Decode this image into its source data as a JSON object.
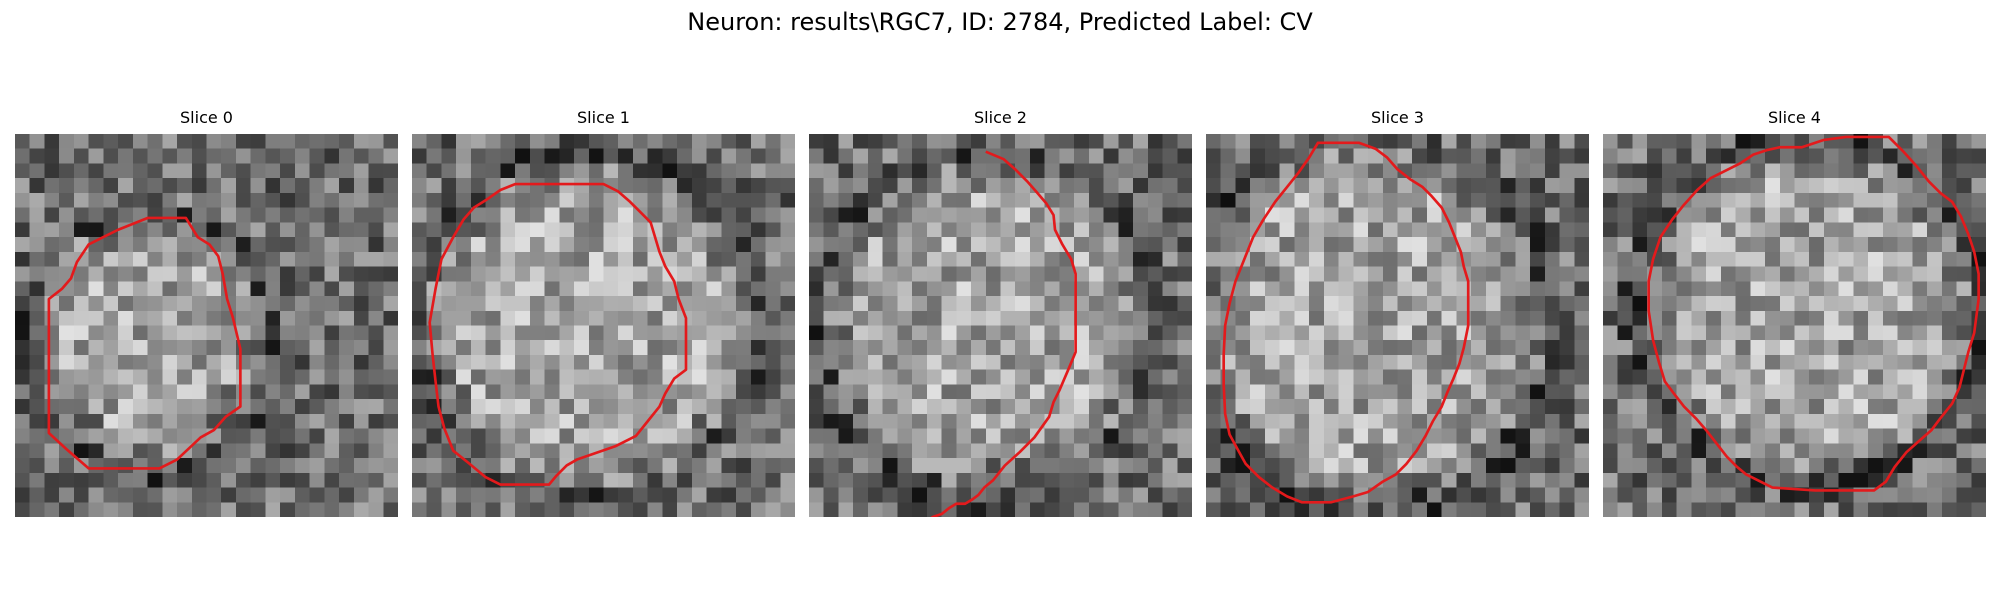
{
  "figure": {
    "title": "Neuron: results\\RGC7, ID: 2784, Predicted Label: CV",
    "outline_color": "#e31a1c",
    "colormap": "gray"
  },
  "panels": [
    {
      "title": "Slice 0",
      "contour": [
        [
          12.4,
          7.0
        ],
        [
          13.2,
          7.5
        ],
        [
          13.8,
          8.3
        ],
        [
          14.1,
          9.5
        ],
        [
          14.4,
          11.2
        ],
        [
          14.8,
          12.5
        ],
        [
          15.3,
          14.6
        ],
        [
          15.3,
          18.5
        ],
        [
          14.3,
          19.2
        ],
        [
          13.5,
          20.1
        ],
        [
          12.6,
          20.6
        ],
        [
          11.0,
          22.1
        ],
        [
          9.8,
          22.7
        ],
        [
          5.0,
          22.7
        ],
        [
          3.5,
          21.4
        ],
        [
          2.3,
          20.3
        ],
        [
          2.3,
          11.2
        ],
        [
          3.2,
          10.5
        ],
        [
          3.8,
          9.8
        ],
        [
          4.2,
          8.7
        ],
        [
          5.0,
          7.5
        ],
        [
          6.0,
          7.0
        ],
        [
          7.0,
          6.5
        ],
        [
          9.0,
          5.7
        ],
        [
          11.6,
          5.7
        ]
      ]
    },
    {
      "title": "Slice 1",
      "contour": [
        [
          11.2,
          3.4
        ],
        [
          13.0,
          3.4
        ],
        [
          14.0,
          3.9
        ],
        [
          14.8,
          4.6
        ],
        [
          15.5,
          5.3
        ],
        [
          16.2,
          6.0
        ],
        [
          16.5,
          7.0
        ],
        [
          16.8,
          8.0
        ],
        [
          17.2,
          9.0
        ],
        [
          17.8,
          10.0
        ],
        [
          18.1,
          11.2
        ],
        [
          18.6,
          12.5
        ],
        [
          18.6,
          14.2
        ],
        [
          18.6,
          16.0
        ],
        [
          17.8,
          16.6
        ],
        [
          17.2,
          17.6
        ],
        [
          16.8,
          18.5
        ],
        [
          16.0,
          19.5
        ],
        [
          15.2,
          20.5
        ],
        [
          13.8,
          21.2
        ],
        [
          11.2,
          22.1
        ],
        [
          10.5,
          22.5
        ],
        [
          9.8,
          23.2
        ],
        [
          9.3,
          23.8
        ],
        [
          6.0,
          23.8
        ],
        [
          5.0,
          23.3
        ],
        [
          3.8,
          22.3
        ],
        [
          2.8,
          21.5
        ],
        [
          2.2,
          20.0
        ],
        [
          1.8,
          18.5
        ],
        [
          1.6,
          16.8
        ],
        [
          1.4,
          15.0
        ],
        [
          1.2,
          12.8
        ],
        [
          1.6,
          10.5
        ],
        [
          2.0,
          8.5
        ],
        [
          2.8,
          7.0
        ],
        [
          3.5,
          5.8
        ],
        [
          4.2,
          5.0
        ],
        [
          5.0,
          4.5
        ],
        [
          6.0,
          3.8
        ],
        [
          7.0,
          3.4
        ]
      ]
    },
    {
      "title": "Slice 2",
      "contour": [
        [
          12.0,
          1.2
        ],
        [
          13.2,
          1.7
        ],
        [
          14.0,
          2.4
        ],
        [
          14.8,
          3.2
        ],
        [
          15.5,
          4.0
        ],
        [
          16.1,
          4.7
        ],
        [
          16.6,
          5.5
        ],
        [
          16.7,
          6.5
        ],
        [
          17.2,
          7.5
        ],
        [
          17.8,
          8.5
        ],
        [
          18.1,
          9.5
        ],
        [
          18.1,
          11.0
        ],
        [
          18.1,
          12.5
        ],
        [
          18.1,
          14.8
        ],
        [
          17.6,
          16.0
        ],
        [
          17.0,
          17.4
        ],
        [
          16.6,
          18.2
        ],
        [
          16.3,
          19.2
        ],
        [
          15.3,
          20.6
        ],
        [
          14.3,
          21.6
        ],
        [
          13.3,
          22.5
        ],
        [
          12.5,
          23.5
        ],
        [
          11.9,
          24.0
        ],
        [
          11.5,
          24.5
        ],
        [
          11.1,
          24.8
        ],
        [
          10.6,
          25.1
        ],
        [
          10.0,
          25.1
        ],
        [
          9.5,
          25.4
        ],
        [
          9.0,
          25.8
        ],
        [
          8.4,
          26.0
        ],
        [
          8.0,
          26.3
        ],
        [
          7.6,
          26.6
        ],
        [
          6.2,
          26.6
        ]
      ]
    },
    {
      "title": "Slice 3",
      "contour": [
        [
          7.6,
          0.6
        ],
        [
          10.4,
          0.6
        ],
        [
          11.5,
          1.0
        ],
        [
          12.3,
          1.6
        ],
        [
          13.0,
          2.4
        ],
        [
          13.9,
          3.1
        ],
        [
          14.7,
          3.6
        ],
        [
          15.3,
          4.2
        ],
        [
          16.0,
          5.0
        ],
        [
          16.5,
          6.0
        ],
        [
          16.9,
          7.0
        ],
        [
          17.3,
          8.0
        ],
        [
          17.5,
          9.0
        ],
        [
          17.8,
          10.0
        ],
        [
          17.8,
          11.2
        ],
        [
          17.8,
          13.0
        ],
        [
          17.5,
          14.5
        ],
        [
          17.2,
          15.6
        ],
        [
          16.8,
          16.6
        ],
        [
          16.4,
          17.5
        ],
        [
          16.0,
          18.5
        ],
        [
          15.4,
          19.5
        ],
        [
          14.9,
          20.5
        ],
        [
          14.3,
          21.5
        ],
        [
          13.6,
          22.4
        ],
        [
          12.9,
          23.1
        ],
        [
          12.0,
          23.6
        ],
        [
          11.0,
          24.3
        ],
        [
          10.0,
          24.6
        ],
        [
          8.5,
          25.0
        ],
        [
          6.5,
          25.0
        ],
        [
          5.5,
          24.6
        ],
        [
          4.5,
          24.0
        ],
        [
          3.6,
          23.3
        ],
        [
          2.7,
          22.4
        ],
        [
          2.2,
          21.5
        ],
        [
          1.6,
          20.4
        ],
        [
          1.3,
          19.0
        ],
        [
          1.2,
          17.0
        ],
        [
          1.2,
          15.0
        ],
        [
          1.3,
          13.0
        ],
        [
          1.6,
          11.5
        ],
        [
          2.0,
          10.0
        ],
        [
          2.6,
          8.5
        ],
        [
          3.2,
          7.0
        ],
        [
          3.9,
          5.8
        ],
        [
          4.7,
          4.6
        ],
        [
          5.5,
          3.6
        ],
        [
          6.3,
          2.6
        ],
        [
          7.0,
          1.6
        ]
      ]
    },
    {
      "title": "Slice 4",
      "contour": [
        [
          16.5,
          0.2
        ],
        [
          19.4,
          0.2
        ],
        [
          20.4,
          1.2
        ],
        [
          21.3,
          2.2
        ],
        [
          22.1,
          3.2
        ],
        [
          22.9,
          4.0
        ],
        [
          23.7,
          4.6
        ],
        [
          24.3,
          5.6
        ],
        [
          24.8,
          6.8
        ],
        [
          25.2,
          8.0
        ],
        [
          25.5,
          9.5
        ],
        [
          25.5,
          11.2
        ],
        [
          25.2,
          13.5
        ],
        [
          24.8,
          14.8
        ],
        [
          24.5,
          16.0
        ],
        [
          24.2,
          17.2
        ],
        [
          23.7,
          18.3
        ],
        [
          22.9,
          19.3
        ],
        [
          22.3,
          20.1
        ],
        [
          21.5,
          20.8
        ],
        [
          20.6,
          21.6
        ],
        [
          19.8,
          22.6
        ],
        [
          19.2,
          23.6
        ],
        [
          18.4,
          24.2
        ],
        [
          16.4,
          24.2
        ],
        [
          14.4,
          24.2
        ],
        [
          11.5,
          24.0
        ],
        [
          10.5,
          23.5
        ],
        [
          9.7,
          23.1
        ],
        [
          9.1,
          22.6
        ],
        [
          8.4,
          21.9
        ],
        [
          7.7,
          21.0
        ],
        [
          7.0,
          20.1
        ],
        [
          6.3,
          19.3
        ],
        [
          5.5,
          18.5
        ],
        [
          4.8,
          17.6
        ],
        [
          4.2,
          16.8
        ],
        [
          3.8,
          15.5
        ],
        [
          3.4,
          14.0
        ],
        [
          3.1,
          12.0
        ],
        [
          3.1,
          10.0
        ],
        [
          3.4,
          8.5
        ],
        [
          3.9,
          7.0
        ],
        [
          4.7,
          5.8
        ],
        [
          5.5,
          4.8
        ],
        [
          6.4,
          3.8
        ],
        [
          7.3,
          3.0
        ],
        [
          8.3,
          2.5
        ],
        [
          9.3,
          2.0
        ],
        [
          10.2,
          1.4
        ],
        [
          11.1,
          1.1
        ],
        [
          12.0,
          0.9
        ],
        [
          13.5,
          0.9
        ],
        [
          15.0,
          0.4
        ]
      ]
    }
  ]
}
